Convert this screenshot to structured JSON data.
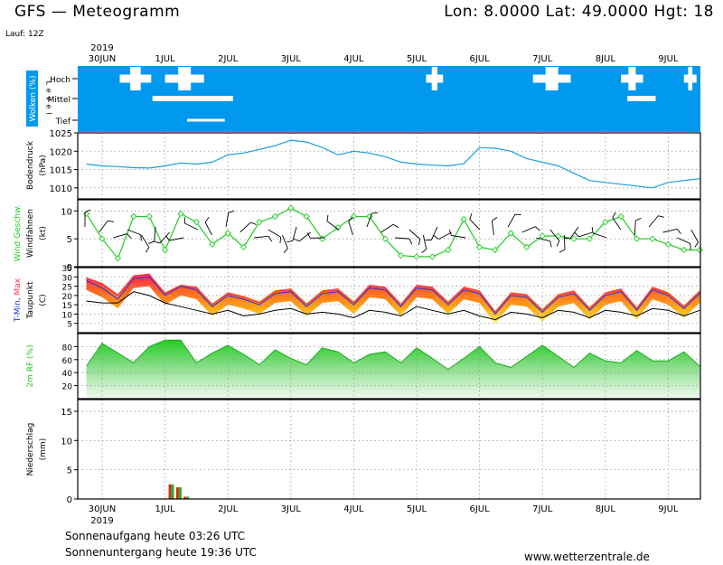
{
  "header": {
    "title": "GFS  —  Meteogramm",
    "location": "Lon: 8.0000  Lat: 49.0000  Hgt: 18",
    "run": "Lauf: 12Z"
  },
  "dates": {
    "year_top": "2019",
    "year_bottom": "2019",
    "labels": [
      "30JUN",
      "1JUL",
      "2JUL",
      "3JUL",
      "4JUL",
      "5JUL",
      "6JUL",
      "7JUL",
      "8JUL",
      "9JUL"
    ]
  },
  "footer": {
    "sunrise": "Sonnenaufgang heute 03:26 UTC",
    "sunset": "Sonnenuntergang heute 19:36 UTC",
    "website": "www.wetterzentrale.de"
  },
  "colors": {
    "cloud_bg": "#0099ee",
    "pressure_line": "#1a9edb",
    "wind_line": "#22cc22",
    "tmax_red": "#ff3355",
    "tmin_blue": "#2233dd",
    "rh_green": "#22cc22",
    "precip_red": "#cc3311",
    "precip_green": "#33aa33"
  },
  "chart_data": [
    {
      "type": "area",
      "panel": "clouds",
      "ylabel": "Wolken (%)",
      "level_label": "Level",
      "levels": [
        "Hoch",
        "Mittel",
        "Tief"
      ],
      "x_days": [
        0,
        1,
        2,
        3,
        4,
        5,
        6,
        7,
        8,
        9
      ],
      "cloud_gaps": [
        {
          "level": "Hoch",
          "start_day": 0.28,
          "end_day": 0.78
        },
        {
          "level": "Hoch",
          "start_day": 1.0,
          "end_day": 1.62
        },
        {
          "level": "Hoch",
          "start_day": 5.15,
          "end_day": 5.42
        },
        {
          "level": "Hoch",
          "start_day": 6.85,
          "end_day": 7.45
        },
        {
          "level": "Hoch",
          "start_day": 8.25,
          "end_day": 8.6
        },
        {
          "level": "Hoch",
          "start_day": 9.25,
          "end_day": 9.45
        },
        {
          "level": "Mittel",
          "start_day": 0.8,
          "end_day": 2.08
        },
        {
          "level": "Mittel",
          "start_day": 8.35,
          "end_day": 8.8
        },
        {
          "level": "Tief",
          "start_day": 1.35,
          "end_day": 1.95
        }
      ]
    },
    {
      "type": "line",
      "panel": "pressure",
      "ylabel": "Bodendruck (hPa)",
      "ylim": [
        1007,
        1025
      ],
      "yticks": [
        1010,
        1015,
        1020,
        1025
      ],
      "x_days": [
        -0.25,
        0,
        0.25,
        0.5,
        0.75,
        1,
        1.25,
        1.5,
        1.75,
        2,
        2.25,
        2.5,
        2.75,
        3,
        3.25,
        3.5,
        3.75,
        4,
        4.25,
        4.5,
        4.75,
        5,
        5.25,
        5.5,
        5.75,
        6,
        6.25,
        6.5,
        6.75,
        7,
        7.25,
        7.5,
        7.75,
        8,
        8.25,
        8.5,
        8.75,
        9,
        9.25,
        9.5
      ],
      "values": [
        1016.5,
        1016,
        1015.8,
        1015.5,
        1015.4,
        1016,
        1016.8,
        1016.5,
        1017,
        1019,
        1019.5,
        1020.5,
        1021.5,
        1023,
        1022.5,
        1021,
        1019,
        1020,
        1019.5,
        1018.5,
        1017,
        1016.5,
        1016.2,
        1016,
        1016.6,
        1021,
        1020.8,
        1020,
        1018,
        1017,
        1016,
        1014,
        1012,
        1011.5,
        1011,
        1010.5,
        1010,
        1011.5,
        1012,
        1012.5
      ]
    },
    {
      "type": "line",
      "panel": "wind",
      "ylabel": "Wind Geschw. Windfahnen (kt)",
      "ylim": [
        0,
        12
      ],
      "yticks": [
        0,
        5,
        10
      ],
      "x_days": [
        -0.25,
        0,
        0.25,
        0.5,
        0.75,
        1,
        1.25,
        1.5,
        1.75,
        2,
        2.25,
        2.5,
        2.75,
        3,
        3.25,
        3.5,
        3.75,
        4,
        4.25,
        4.5,
        4.75,
        5,
        5.25,
        5.5,
        5.75,
        6,
        6.25,
        6.5,
        6.75,
        7,
        7.25,
        7.5,
        7.75,
        8,
        8.25,
        8.5,
        8.75,
        9,
        9.25,
        9.5
      ],
      "values": [
        9.5,
        5,
        1.5,
        9,
        9,
        3,
        9.5,
        8,
        4,
        6,
        3.5,
        8,
        9,
        10.5,
        9,
        5,
        7,
        9,
        9,
        5,
        2,
        1.8,
        1.8,
        3,
        8.5,
        3.5,
        3,
        6,
        3.5,
        5.5,
        5.5,
        5,
        5,
        8,
        9,
        5,
        5,
        4,
        3,
        3
      ],
      "series": [
        {
          "name": "Wind Geschw."
        }
      ]
    },
    {
      "type": "area",
      "panel": "temperature",
      "ylabel": "T-Min, Max Taupunkt (C)",
      "ylim": [
        0,
        35
      ],
      "yticks": [
        5,
        10,
        15,
        20,
        25,
        30,
        35
      ],
      "x_days": [
        -0.25,
        0,
        0.25,
        0.5,
        0.75,
        1,
        1.25,
        1.5,
        1.75,
        2,
        2.25,
        2.5,
        2.75,
        3,
        3.25,
        3.5,
        3.75,
        4,
        4.25,
        4.5,
        4.75,
        5,
        5.25,
        5.5,
        5.75,
        6,
        6.25,
        6.5,
        6.75,
        7,
        7.25,
        7.5,
        7.75,
        8,
        8.25,
        8.5,
        8.75,
        9,
        9.25,
        9.5
      ],
      "series": [
        {
          "name": "T-Max",
          "values": [
            29,
            26,
            20,
            30,
            31,
            21,
            25,
            24,
            15,
            21,
            19,
            16,
            22,
            23,
            15,
            22,
            23,
            16,
            25,
            24,
            15,
            25,
            24,
            16,
            24,
            22,
            11,
            21,
            20,
            12,
            20,
            22,
            13,
            21,
            23,
            13,
            24,
            21,
            14,
            22
          ]
        },
        {
          "name": "T-Min",
          "values": [
            28,
            24,
            18,
            29,
            30,
            20,
            25,
            23,
            14,
            20,
            18,
            15,
            21,
            22,
            14,
            21,
            22,
            15,
            24,
            23,
            14,
            24,
            23,
            15,
            23,
            21,
            10,
            20,
            19,
            11,
            19,
            21,
            12,
            20,
            22,
            12,
            23,
            20,
            13,
            21
          ]
        },
        {
          "name": "Taupunkt",
          "values": [
            17,
            16,
            16,
            22,
            20,
            16,
            14,
            12,
            10,
            12,
            9,
            10,
            12,
            13,
            10,
            11,
            10,
            8,
            12,
            11,
            9,
            14,
            12,
            10,
            12,
            9,
            7,
            11,
            10,
            8,
            12,
            11,
            8,
            12,
            11,
            9,
            13,
            12,
            9,
            12
          ]
        }
      ]
    },
    {
      "type": "area",
      "panel": "humidity",
      "ylabel": "2m RF (%)",
      "ylim": [
        0,
        100
      ],
      "yticks": [
        20,
        40,
        60,
        80
      ],
      "x_days": [
        -0.25,
        0,
        0.25,
        0.5,
        0.75,
        1,
        1.25,
        1.5,
        1.75,
        2,
        2.25,
        2.5,
        2.75,
        3,
        3.25,
        3.5,
        3.75,
        4,
        4.25,
        4.5,
        4.75,
        5,
        5.25,
        5.5,
        5.75,
        6,
        6.25,
        6.5,
        6.75,
        7,
        7.25,
        7.5,
        7.75,
        8,
        8.25,
        8.5,
        8.75,
        9,
        9.25,
        9.5
      ],
      "values": [
        50,
        85,
        70,
        55,
        80,
        90,
        90,
        55,
        70,
        82,
        68,
        52,
        75,
        62,
        52,
        78,
        72,
        55,
        68,
        72,
        55,
        78,
        62,
        45,
        62,
        80,
        55,
        48,
        65,
        82,
        65,
        48,
        70,
        58,
        55,
        74,
        58,
        58,
        72,
        50
      ]
    },
    {
      "type": "bar",
      "panel": "precipitation",
      "ylabel": "Niederschlag (mm)",
      "ylim": [
        0,
        17
      ],
      "yticks": [
        0,
        5,
        10,
        15
      ],
      "x_days": [
        1.1,
        1.22,
        1.34
      ],
      "values": [
        2.5,
        2.0,
        0.4
      ]
    }
  ]
}
